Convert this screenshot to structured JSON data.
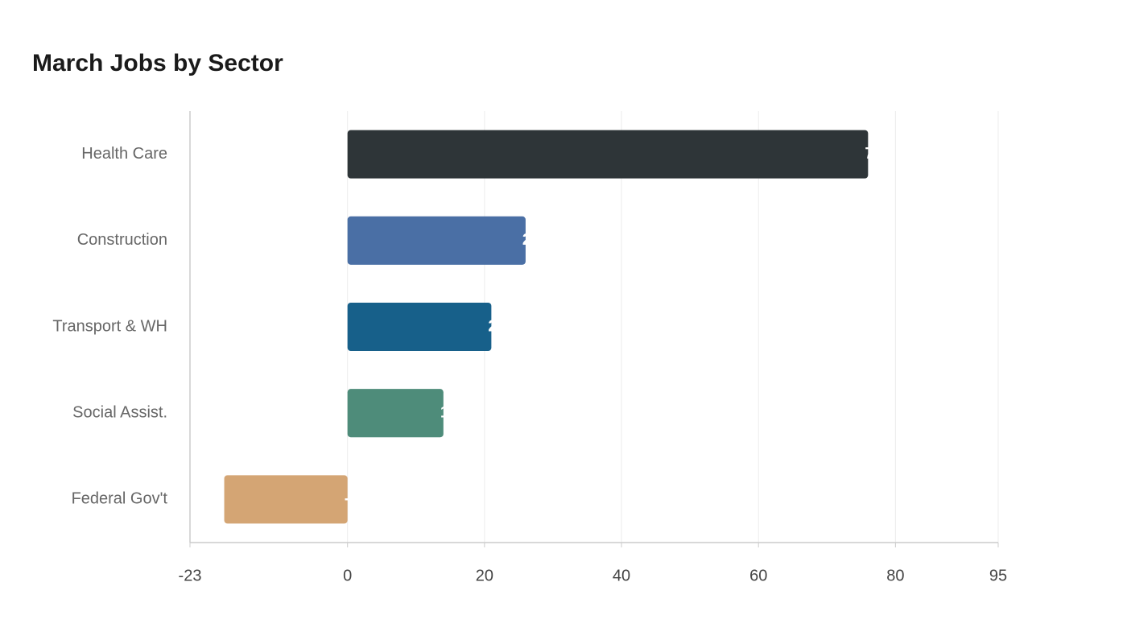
{
  "chart_data": {
    "type": "hbar",
    "title": "March Jobs by Sector",
    "categories": [
      "Health Care",
      "Construction",
      "Transport & WH",
      "Social Assist.",
      "Federal Gov't"
    ],
    "series": [
      {
        "name": "Jobs",
        "values": [
          76,
          26,
          21,
          14,
          -18
        ],
        "colors": [
          "#2e3538",
          "#4a6fa5",
          "#17608a",
          "#4e8c7a",
          "#d4a574"
        ]
      }
    ],
    "xlim": [
      -23,
      95
    ],
    "xticks": [
      -23,
      0,
      20,
      40,
      60,
      80,
      95
    ],
    "grid": true
  }
}
